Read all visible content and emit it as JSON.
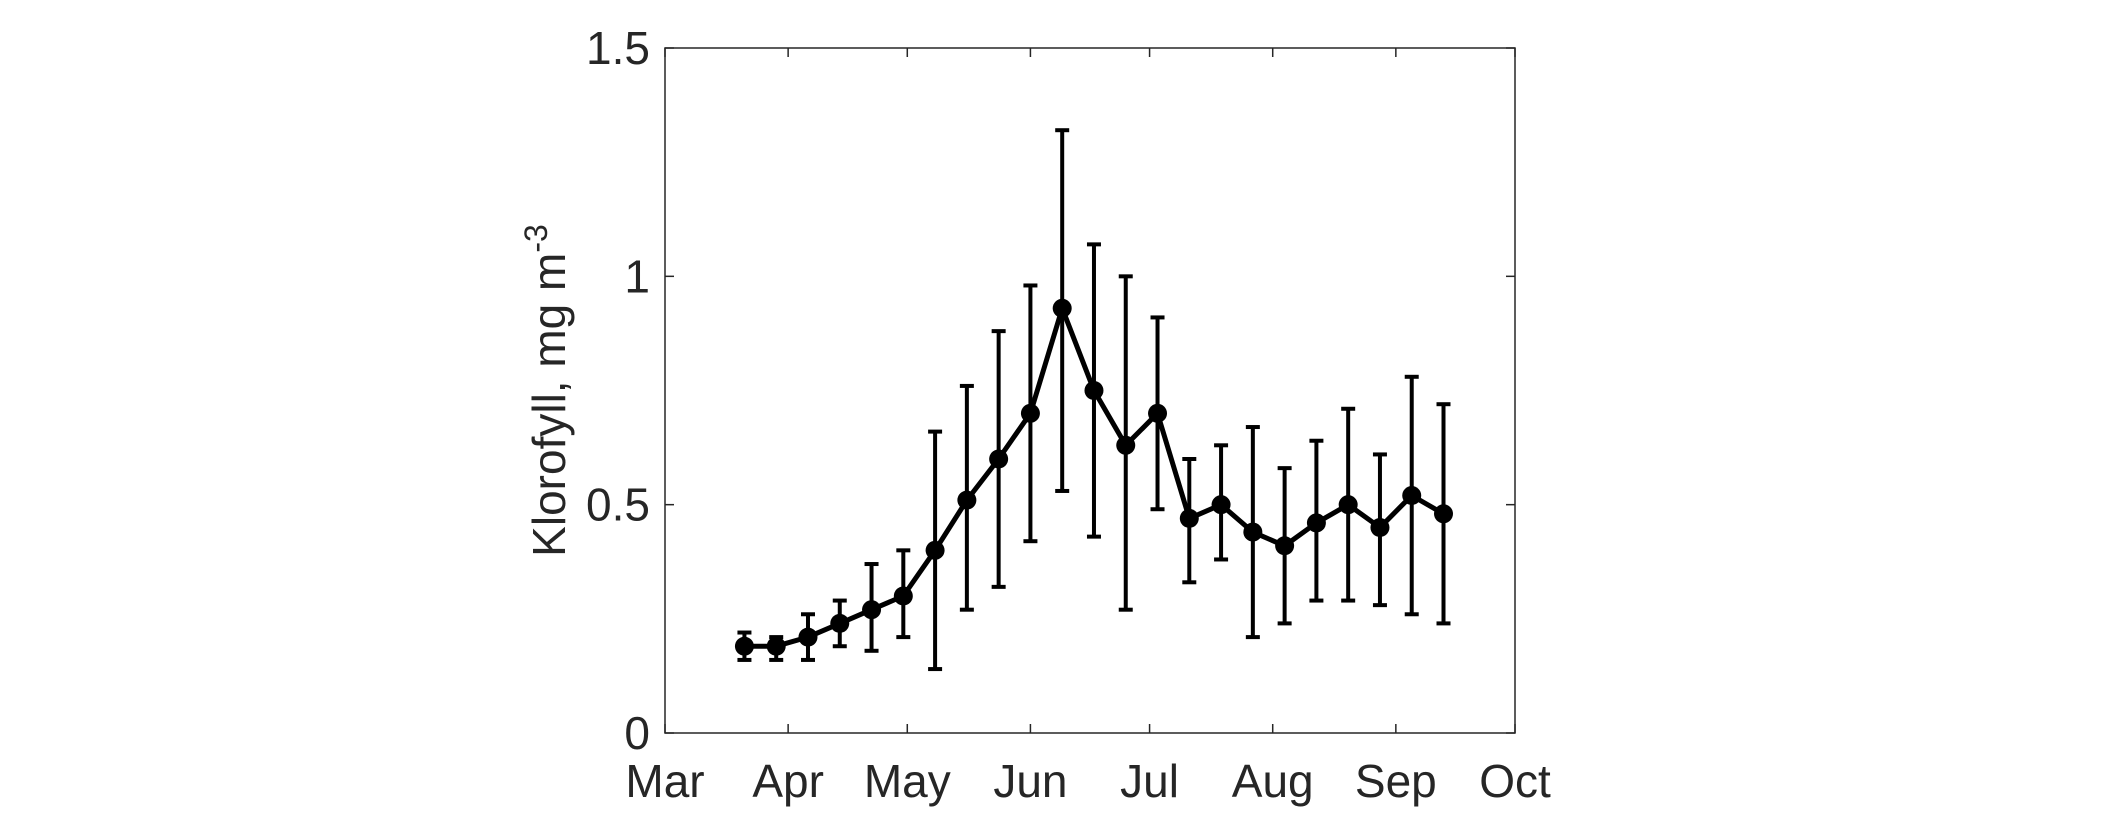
{
  "chart_data": {
    "type": "line",
    "title": "",
    "xlabel": "",
    "ylabel": "Klorofyll, mg m",
    "ylabel_superscript": "-3",
    "xlim": [
      "2000-03-01",
      "2000-10-01"
    ],
    "ylim": [
      0,
      1.5
    ],
    "x_tick_labels": [
      {
        "date": "2000-03-01",
        "label": "Mar"
      },
      {
        "date": "2000-04-01",
        "label": "Apr"
      },
      {
        "date": "2000-05-01",
        "label": "May"
      },
      {
        "date": "2000-06-01",
        "label": "Jun"
      },
      {
        "date": "2000-07-01",
        "label": "Jul"
      },
      {
        "date": "2000-08-01",
        "label": "Aug"
      },
      {
        "date": "2000-09-01",
        "label": "Sep"
      },
      {
        "date": "2000-10-01",
        "label": "Oct"
      }
    ],
    "y_tick_labels": [
      {
        "value": 0,
        "label": "0"
      },
      {
        "value": 0.5,
        "label": "0.5"
      },
      {
        "value": 1,
        "label": "1"
      },
      {
        "value": 1.5,
        "label": "1.5"
      }
    ],
    "grid": false,
    "legend": "none",
    "line_color": "#000000",
    "series": [
      {
        "points": [
          {
            "x": "2000-03-21",
            "y": 0.19,
            "lower": 0.16,
            "upper": 0.22
          },
          {
            "x": "2000-03-29",
            "y": 0.19,
            "lower": 0.16,
            "upper": 0.21
          },
          {
            "x": "2000-04-06",
            "y": 0.21,
            "lower": 0.16,
            "upper": 0.26
          },
          {
            "x": "2000-04-14",
            "y": 0.24,
            "lower": 0.19,
            "upper": 0.29
          },
          {
            "x": "2000-04-22",
            "y": 0.27,
            "lower": 0.18,
            "upper": 0.37
          },
          {
            "x": "2000-04-30",
            "y": 0.3,
            "lower": 0.21,
            "upper": 0.4
          },
          {
            "x": "2000-05-08",
            "y": 0.4,
            "lower": 0.14,
            "upper": 0.66
          },
          {
            "x": "2000-05-16",
            "y": 0.51,
            "lower": 0.27,
            "upper": 0.76
          },
          {
            "x": "2000-05-24",
            "y": 0.6,
            "lower": 0.32,
            "upper": 0.88
          },
          {
            "x": "2000-06-01",
            "y": 0.7,
            "lower": 0.42,
            "upper": 0.98
          },
          {
            "x": "2000-06-09",
            "y": 0.93,
            "lower": 0.53,
            "upper": 1.32
          },
          {
            "x": "2000-06-17",
            "y": 0.75,
            "lower": 0.43,
            "upper": 1.07
          },
          {
            "x": "2000-06-25",
            "y": 0.63,
            "lower": 0.27,
            "upper": 1.0
          },
          {
            "x": "2000-07-03",
            "y": 0.7,
            "lower": 0.49,
            "upper": 0.91
          },
          {
            "x": "2000-07-11",
            "y": 0.47,
            "lower": 0.33,
            "upper": 0.6
          },
          {
            "x": "2000-07-19",
            "y": 0.5,
            "lower": 0.38,
            "upper": 0.63
          },
          {
            "x": "2000-07-27",
            "y": 0.44,
            "lower": 0.21,
            "upper": 0.67
          },
          {
            "x": "2000-08-04",
            "y": 0.41,
            "lower": 0.24,
            "upper": 0.58
          },
          {
            "x": "2000-08-12",
            "y": 0.46,
            "lower": 0.29,
            "upper": 0.64
          },
          {
            "x": "2000-08-20",
            "y": 0.5,
            "lower": 0.29,
            "upper": 0.71
          },
          {
            "x": "2000-08-28",
            "y": 0.45,
            "lower": 0.28,
            "upper": 0.61
          },
          {
            "x": "2000-09-05",
            "y": 0.52,
            "lower": 0.26,
            "upper": 0.78
          },
          {
            "x": "2000-09-13",
            "y": 0.48,
            "lower": 0.24,
            "upper": 0.72
          }
        ]
      }
    ]
  }
}
